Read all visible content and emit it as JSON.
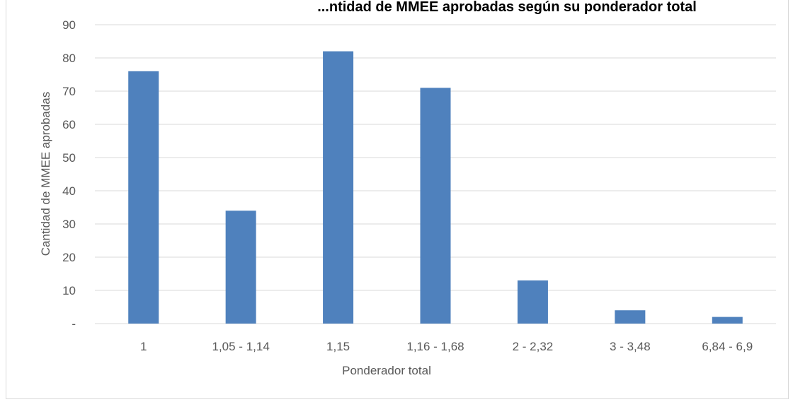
{
  "chart_data": {
    "type": "bar",
    "title": "...ntidad de MMEE aprobadas según su ponderador total",
    "xlabel": "Ponderador total",
    "ylabel": "Cantidad de MMEE aprobadas",
    "categories": [
      "1",
      "1,05 - 1,14",
      "1,15",
      "1,16 - 1,68",
      "2 - 2,32",
      "3 - 3,48",
      "6,84 - 6,9"
    ],
    "series": [
      {
        "values": [
          76,
          34,
          82,
          71,
          13,
          4,
          2
        ]
      }
    ],
    "ylim": [
      0,
      90
    ],
    "yticks": [
      "-",
      "10",
      "20",
      "30",
      "40",
      "50",
      "60",
      "70",
      "80",
      "90"
    ],
    "grid": true,
    "legend": "none",
    "colors": {
      "bar": "#4f81bd",
      "grid": "#d9d9d9",
      "text": "#595959"
    }
  }
}
